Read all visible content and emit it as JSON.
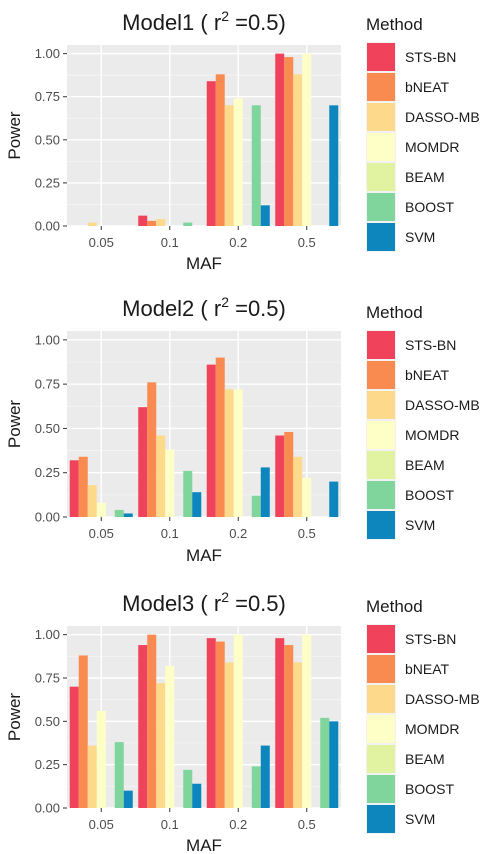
{
  "chart_data": [
    {
      "type": "bar",
      "title_main": "Model1 ( r",
      "title_sup": "2",
      "title_tail": " =0.5)",
      "xlabel": "MAF",
      "ylabel": "Power",
      "categories": [
        "0.05",
        "0.1",
        "0.2",
        "0.5"
      ],
      "yticks": [
        "0.00",
        "0.25",
        "0.50",
        "0.75",
        "1.00"
      ],
      "ylim": [
        0,
        1.05
      ],
      "grid": true,
      "legend_title": "Method",
      "legend_position": "right",
      "series": [
        {
          "name": "STS-BN",
          "color": "#F0425A",
          "values": [
            0,
            0.06,
            0.84,
            1.0
          ]
        },
        {
          "name": "bNEAT",
          "color": "#F98B51",
          "values": [
            0,
            0.03,
            0.88,
            0.98
          ]
        },
        {
          "name": "DASSO-MB",
          "color": "#FDD98C",
          "values": [
            0.02,
            0.04,
            0.7,
            0.88
          ]
        },
        {
          "name": "MOMDR",
          "color": "#FEFFC6",
          "values": [
            0,
            0,
            0.74,
            1.0
          ]
        },
        {
          "name": "BEAM",
          "color": "#E1F2A1",
          "values": [
            0,
            0,
            0,
            0
          ]
        },
        {
          "name": "BOOST",
          "color": "#7FD59B",
          "values": [
            0,
            0.02,
            0.7,
            0
          ]
        },
        {
          "name": "SVM",
          "color": "#0C86BD",
          "values": [
            0,
            0,
            0.12,
            0.7
          ]
        }
      ]
    },
    {
      "type": "bar",
      "title_main": "Model2 ( r",
      "title_sup": "2",
      "title_tail": " =0.5)",
      "xlabel": "MAF",
      "ylabel": "Power",
      "categories": [
        "0.05",
        "0.1",
        "0.2",
        "0.5"
      ],
      "yticks": [
        "0.00",
        "0.25",
        "0.50",
        "0.75",
        "1.00"
      ],
      "ylim": [
        0,
        1.05
      ],
      "grid": true,
      "legend_title": "Method",
      "legend_position": "right",
      "series": [
        {
          "name": "STS-BN",
          "color": "#F0425A",
          "values": [
            0.32,
            0.62,
            0.86,
            0.46
          ]
        },
        {
          "name": "bNEAT",
          "color": "#F98B51",
          "values": [
            0.34,
            0.76,
            0.9,
            0.48
          ]
        },
        {
          "name": "DASSO-MB",
          "color": "#FDD98C",
          "values": [
            0.18,
            0.46,
            0.72,
            0.34
          ]
        },
        {
          "name": "MOMDR",
          "color": "#FEFFC6",
          "values": [
            0.08,
            0.38,
            0.72,
            0.22
          ]
        },
        {
          "name": "BEAM",
          "color": "#E1F2A1",
          "values": [
            0,
            0,
            0,
            0
          ]
        },
        {
          "name": "BOOST",
          "color": "#7FD59B",
          "values": [
            0.04,
            0.26,
            0.12,
            0
          ]
        },
        {
          "name": "SVM",
          "color": "#0C86BD",
          "values": [
            0.02,
            0.14,
            0.28,
            0.2
          ]
        }
      ]
    },
    {
      "type": "bar",
      "title_main": "Model3 ( r",
      "title_sup": "2",
      "title_tail": " =0.5)",
      "xlabel": "MAF",
      "ylabel": "Power",
      "categories": [
        "0.05",
        "0.1",
        "0.2",
        "0.5"
      ],
      "yticks": [
        "0.00",
        "0.25",
        "0.50",
        "0.75",
        "1.00"
      ],
      "ylim": [
        0,
        1.05
      ],
      "grid": true,
      "legend_title": "Method",
      "legend_position": "right",
      "series": [
        {
          "name": "STS-BN",
          "color": "#F0425A",
          "values": [
            0.7,
            0.94,
            0.98,
            0.98
          ]
        },
        {
          "name": "bNEAT",
          "color": "#F98B51",
          "values": [
            0.88,
            1.0,
            0.96,
            0.94
          ]
        },
        {
          "name": "DASSO-MB",
          "color": "#FDD98C",
          "values": [
            0.36,
            0.72,
            0.84,
            0.84
          ]
        },
        {
          "name": "MOMDR",
          "color": "#FEFFC6",
          "values": [
            0.56,
            0.82,
            1.0,
            1.0
          ]
        },
        {
          "name": "BEAM",
          "color": "#E1F2A1",
          "values": [
            0,
            0,
            0,
            0
          ]
        },
        {
          "name": "BOOST",
          "color": "#7FD59B",
          "values": [
            0.38,
            0.22,
            0.24,
            0.52
          ]
        },
        {
          "name": "SVM",
          "color": "#0C86BD",
          "values": [
            0.1,
            0.14,
            0.36,
            0.5
          ]
        }
      ]
    }
  ]
}
